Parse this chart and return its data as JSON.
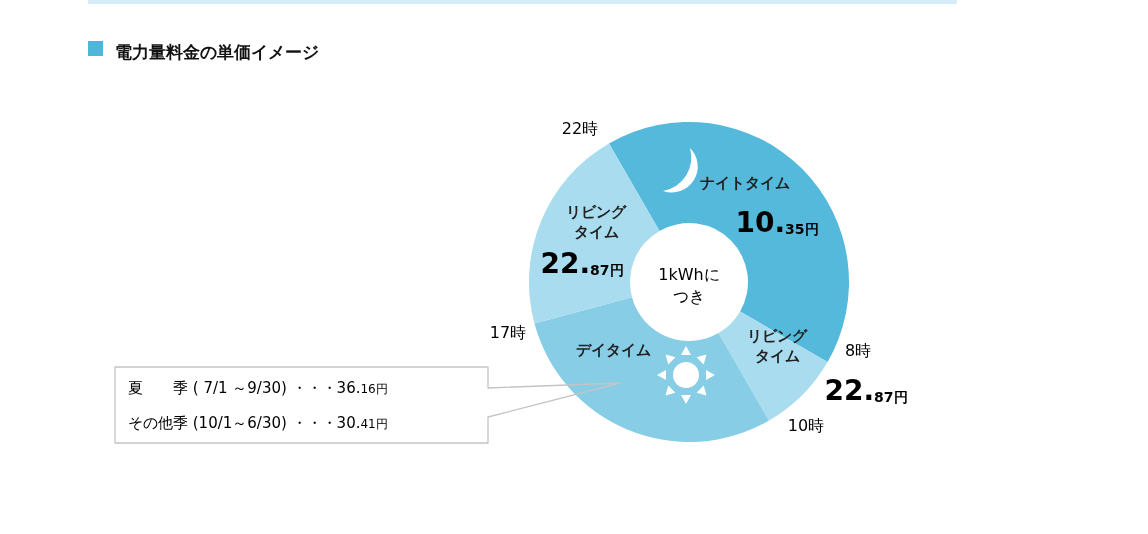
{
  "chart_data": {
    "type": "donut",
    "title": "電力量料金の単価イメージ",
    "categories": [
      "ナイトタイム",
      "リビングタイム",
      "デイタイム",
      "リビングタイム"
    ],
    "values": [
      41.67,
      8.33,
      29.17,
      20.83
    ],
    "colors": [
      "#55b9dc",
      "#a8dcee",
      "#88cde6",
      "#a8dcee"
    ],
    "annotations": [
      "22時",
      "8時",
      "10時",
      "17時",
      "10.35円",
      "22.87円",
      "22.87円",
      "1kWhにつき",
      "夏　　季 ( 7/1 ～9/30) ・・・36.16円",
      "その他季 (10/1～6/30) ・・・30.41円"
    ]
  }
}
